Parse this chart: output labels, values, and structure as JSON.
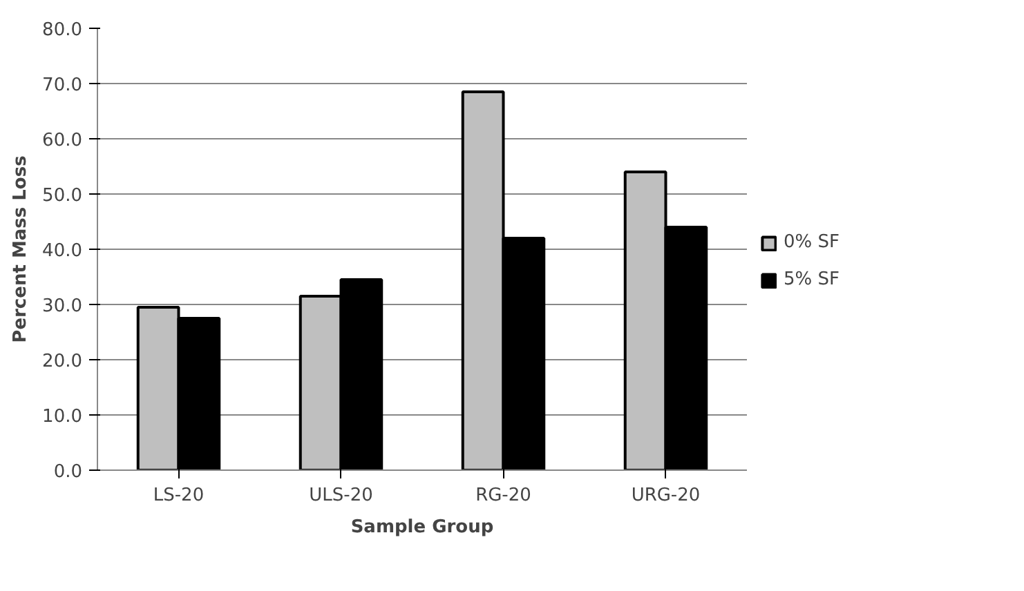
{
  "chart_data": {
    "type": "bar",
    "xlabel": "Sample Group",
    "ylabel": "Percent Mass Loss",
    "categories": [
      "LS-20",
      "ULS-20",
      "RG-20",
      "URG-20"
    ],
    "series": [
      {
        "name": "0% SF",
        "color": "#bfbfbf",
        "values": [
          29.5,
          31.5,
          68.5,
          54
        ]
      },
      {
        "name": "5% SF",
        "color": "#000000",
        "values": [
          27.5,
          34.5,
          42,
          44
        ]
      }
    ],
    "ylim": [
      0,
      80
    ],
    "yticks": [
      {
        "value": 0,
        "label": "0.0"
      },
      {
        "value": 10,
        "label": "10.0"
      },
      {
        "value": 20,
        "label": "20.0"
      },
      {
        "value": 30,
        "label": "30.0"
      },
      {
        "value": 40,
        "label": "40.0"
      },
      {
        "value": 50,
        "label": "50.0"
      },
      {
        "value": 60,
        "label": "60.0"
      },
      {
        "value": 70,
        "label": "70.0"
      },
      {
        "value": 80,
        "label": "80.0"
      }
    ],
    "grid": "y",
    "legend": "right"
  }
}
